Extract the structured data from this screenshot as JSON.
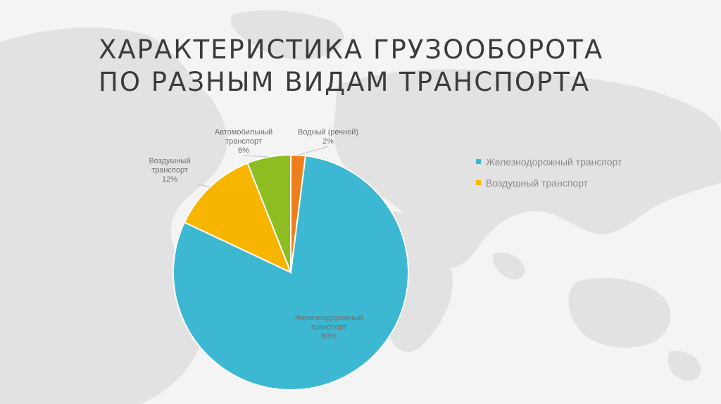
{
  "slide": {
    "title_line1": "ХАРАКТЕРИСТИКА ГРУЗООБОРОТА",
    "title_line2": "ПО РАЗНЫМ ВИДАМ ТРАНСПОРТА"
  },
  "chart_data": {
    "type": "pie",
    "title": "",
    "categories": [
      "Железнодорожный транспорт",
      "Воздушный транспорт",
      "Автомобильный транспорт",
      "Водный (речной)"
    ],
    "values": [
      80,
      12,
      6,
      2
    ],
    "unit": "%",
    "colors": [
      "#3db8d3",
      "#f7b500",
      "#8cbd21",
      "#ee7f1a"
    ],
    "start_category": "Водный (речной)",
    "direction": "clockwise-from-top",
    "slice_labels": [
      {
        "lines": [
          "Железнодорожный",
          "транспорт"
        ],
        "percent": "80%"
      },
      {
        "lines": [
          "Воздушный",
          "транспорт"
        ],
        "percent": "12%"
      },
      {
        "lines": [
          "Автомобильный",
          "транспорт"
        ],
        "percent": "6%"
      },
      {
        "lines": [
          "Водный (речной)"
        ],
        "percent": "2%"
      }
    ],
    "legend": {
      "placement": "right",
      "items": [
        {
          "label": "Железнодорожный транспорт",
          "color": "#3db8d3"
        },
        {
          "label": "Воздушный транспорт",
          "color": "#f7b500"
        }
      ]
    }
  }
}
